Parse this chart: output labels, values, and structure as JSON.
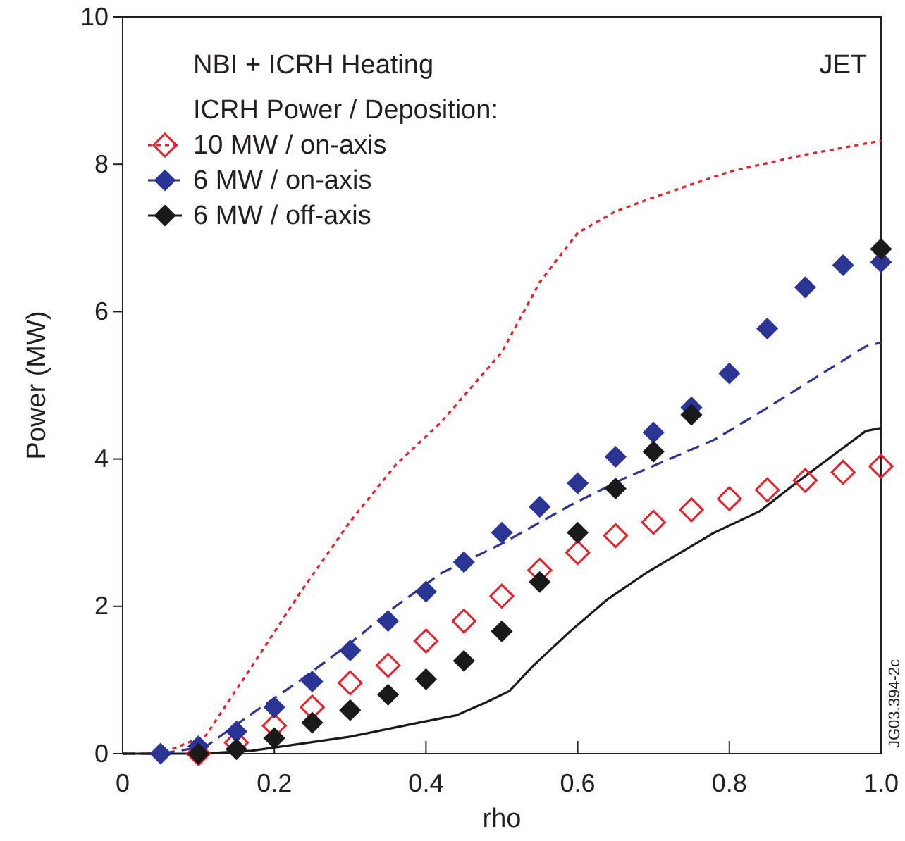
{
  "chart_data": {
    "type": "line",
    "title": "NBI + ICRH Heating",
    "legend_title": "ICRH Power / Deposition:",
    "xlabel": "rho",
    "ylabel": "Power (MW)",
    "xlim": [
      0,
      1
    ],
    "ylim": [
      0,
      10
    ],
    "xticks": [
      0,
      0.2,
      0.4,
      0.6,
      0.8,
      {
        "value": 1,
        "label": "1.0"
      }
    ],
    "yticks": [
      0,
      2,
      4,
      6,
      8,
      10
    ],
    "grid": false,
    "legend": "top left",
    "annotations": [
      "JET",
      "JG03.394-2c"
    ],
    "series": [
      {
        "name": "10 MW / on-axis",
        "line_style": "dotted",
        "marker": "none",
        "color": "#e8202a",
        "x": [
          0,
          0.05,
          0.11,
          0.17,
          0.235,
          0.3,
          0.36,
          0.42,
          0.5,
          0.55,
          0.6,
          0.65,
          0.7,
          0.8,
          0.9,
          1.0
        ],
        "values": [
          0,
          0,
          0.25,
          1.18,
          2.2,
          3.15,
          3.92,
          4.5,
          5.45,
          6.4,
          7.07,
          7.36,
          7.55,
          7.9,
          8.13,
          8.32
        ]
      },
      {
        "name": "6 MW / on-axis",
        "line_style": "dashed",
        "marker": "none",
        "color": "#2b3595",
        "x": [
          0,
          0.05,
          0.11,
          0.17,
          0.235,
          0.3,
          0.36,
          0.42,
          0.5,
          0.59,
          0.66,
          0.78,
          0.84,
          0.98,
          1.0
        ],
        "values": [
          0,
          0,
          0.1,
          0.54,
          1.0,
          1.5,
          2.0,
          2.45,
          2.85,
          3.37,
          3.73,
          4.26,
          4.63,
          5.53,
          5.58
        ]
      },
      {
        "name": "6 MW / off-axis",
        "line_style": "solid",
        "marker": "none",
        "color": "#1a1a1a",
        "x": [
          0,
          0.1,
          0.17,
          0.3,
          0.39,
          0.44,
          0.48,
          0.51,
          0.54,
          0.59,
          0.64,
          0.69,
          0.78,
          0.84,
          0.89,
          0.98,
          1.0
        ],
        "values": [
          0,
          0,
          0.04,
          0.23,
          0.42,
          0.52,
          0.7,
          0.85,
          1.18,
          1.66,
          2.1,
          2.45,
          3.0,
          3.29,
          3.69,
          4.38,
          4.42
        ]
      },
      {
        "type": "scatter",
        "marker": "diamond-open",
        "color": "#e8202a",
        "x": [
          0.1,
          0.15,
          0.2,
          0.25,
          0.3,
          0.35,
          0.4,
          0.45,
          0.5,
          0.55,
          0.6,
          0.65,
          0.7,
          0.75,
          0.8,
          0.85,
          0.9,
          0.95,
          1.0
        ],
        "values": [
          0,
          0.15,
          0.38,
          0.63,
          0.96,
          1.2,
          1.53,
          1.8,
          2.14,
          2.49,
          2.73,
          2.96,
          3.14,
          3.31,
          3.46,
          3.58,
          3.71,
          3.82,
          3.9
        ]
      },
      {
        "type": "scatter",
        "marker": "diamond",
        "color": "#2b3595",
        "x": [
          0.05,
          0.1,
          0.15,
          0.2,
          0.25,
          0.3,
          0.35,
          0.4,
          0.45,
          0.5,
          0.55,
          0.6,
          0.65,
          0.7,
          0.75,
          0.8,
          0.85,
          0.9,
          0.95,
          1.0
        ],
        "values": [
          0,
          0.1,
          0.3,
          0.63,
          0.98,
          1.4,
          1.8,
          2.2,
          2.6,
          3.0,
          3.35,
          3.67,
          4.03,
          4.36,
          4.7,
          5.16,
          5.77,
          6.33,
          6.63,
          6.67
        ]
      },
      {
        "type": "scatter",
        "marker": "diamond",
        "color": "#1a1a1a",
        "x": [
          0.1,
          0.15,
          0.2,
          0.25,
          0.3,
          0.35,
          0.4,
          0.45,
          0.5,
          0.55,
          0.6,
          0.65,
          0.7,
          0.75,
          1.0
        ],
        "values": [
          0,
          0.06,
          0.21,
          0.42,
          0.59,
          0.8,
          1.01,
          1.26,
          1.66,
          2.33,
          3.0,
          3.6,
          4.1,
          4.6,
          6.85
        ]
      }
    ]
  }
}
